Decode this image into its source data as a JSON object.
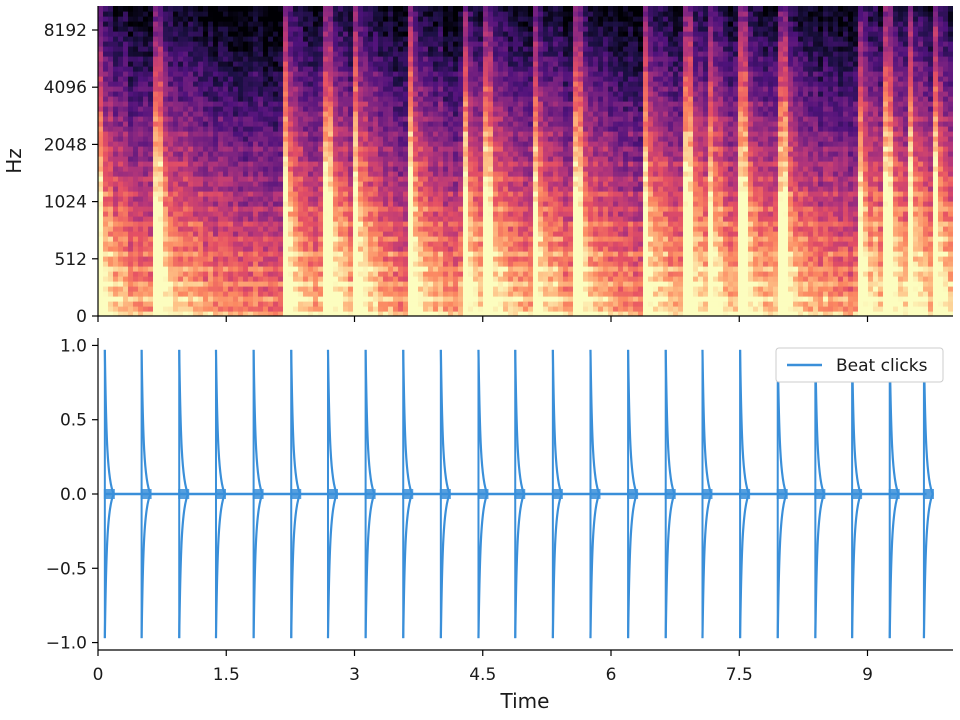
{
  "chart_data": [
    {
      "type": "heatmap",
      "title": "",
      "xlabel": "",
      "ylabel": "Hz",
      "colormap": "magma",
      "y_scale": "log2-like",
      "y_ticks": [
        "0",
        "512",
        "1024",
        "2048",
        "4096",
        "8192"
      ],
      "xlim": [
        0,
        10.0
      ],
      "onsets_s": [
        0.0,
        0.7,
        2.2,
        2.7,
        3.0,
        3.65,
        4.3,
        4.55,
        5.1,
        5.6,
        6.4,
        6.9,
        7.15,
        7.55,
        8.0,
        8.9,
        9.25,
        9.5,
        9.8
      ]
    },
    {
      "type": "line",
      "title": "",
      "xlabel": "Time",
      "ylabel": "",
      "ylim": [
        -1.05,
        1.05
      ],
      "xlim": [
        0,
        10.0
      ],
      "x_ticks": [
        "0",
        "1.5",
        "3",
        "4.5",
        "6",
        "7.5",
        "9"
      ],
      "y_ticks": [
        "1.0",
        "0.5",
        "0.0",
        "−0.5",
        "−1.0"
      ],
      "series": [
        {
          "name": "Beat clicks",
          "color": "#3a8fd9",
          "peak": 0.97,
          "beat_times": [
            0.08,
            0.51,
            0.95,
            1.38,
            1.82,
            2.26,
            2.69,
            3.13,
            3.57,
            4.01,
            4.45,
            4.88,
            5.32,
            5.76,
            6.2,
            6.64,
            7.07,
            7.51,
            7.95,
            8.39,
            8.82,
            9.26,
            9.66
          ]
        }
      ],
      "legend_position": "top-right"
    }
  ]
}
